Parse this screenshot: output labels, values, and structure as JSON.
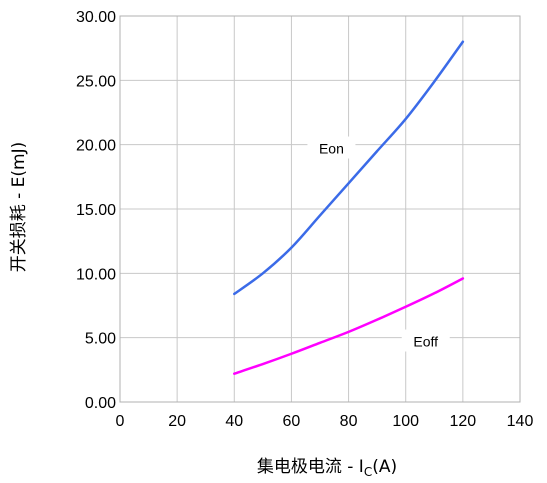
{
  "chart_data": {
    "type": "line",
    "xlabel": "集电极电流 - I",
    "xlabel_sub": "C",
    "xlabel_suffix": "(A)",
    "ylabel": "开关损耗 - E(mJ)",
    "xlim": [
      0,
      140
    ],
    "ylim": [
      0,
      30
    ],
    "x_ticks": [
      "0",
      "20",
      "40",
      "60",
      "80",
      "100",
      "120",
      "140"
    ],
    "y_ticks": [
      "0.00",
      "5.00",
      "10.00",
      "15.00",
      "20.00",
      "25.00",
      "30.00"
    ],
    "grid": true,
    "series": [
      {
        "name": "Eon",
        "color": "#3b6be8",
        "x": [
          40,
          50,
          60,
          70,
          80,
          90,
          100,
          110,
          120
        ],
        "y": [
          8.4,
          10.0,
          12.0,
          14.5,
          17.0,
          19.5,
          22.0,
          24.9,
          28.0
        ]
      },
      {
        "name": "Eoff",
        "color": "#ff00ff",
        "x": [
          40,
          50,
          60,
          70,
          80,
          90,
          100,
          110,
          120
        ],
        "y": [
          2.2,
          2.95,
          3.75,
          4.6,
          5.45,
          6.4,
          7.4,
          8.45,
          9.6
        ]
      }
    ]
  }
}
